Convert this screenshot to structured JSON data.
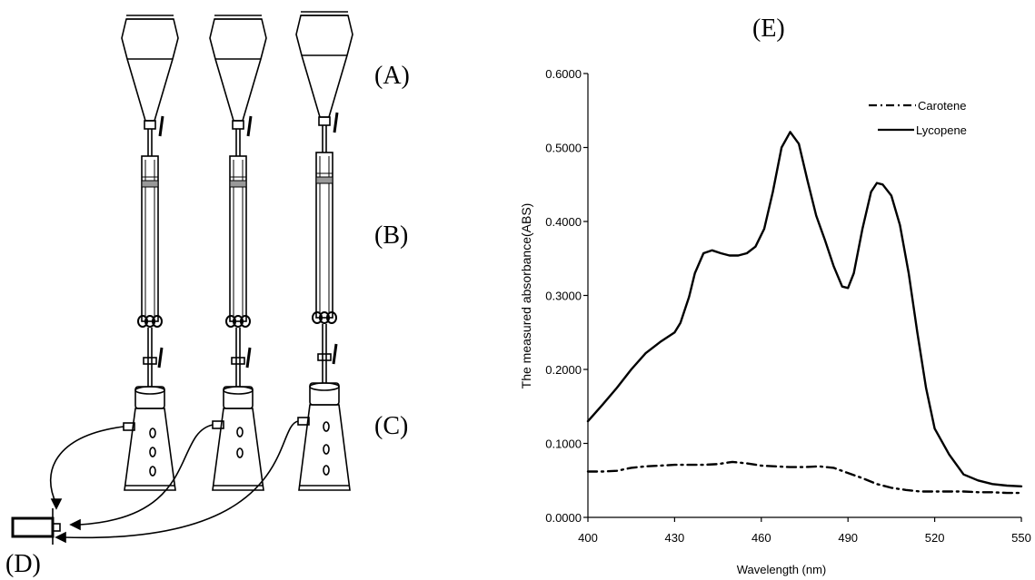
{
  "panel_labels": {
    "a": "(A)",
    "b": "(B)",
    "c": "(C)",
    "d": "(D)",
    "e": "(E)"
  },
  "chart_data": {
    "type": "line",
    "title": "",
    "xlabel": "Wavelength (nm)",
    "ylabel": "The measured absorbance(ABS)",
    "xlim": [
      400,
      550
    ],
    "ylim": [
      0,
      0.6
    ],
    "x_ticks": [
      "400",
      "430",
      "460",
      "490",
      "520",
      "550"
    ],
    "y_ticks": [
      "0.0000",
      "0.1000",
      "0.2000",
      "0.3000",
      "0.4000",
      "0.5000",
      "0.6000"
    ],
    "grid": false,
    "legend_position": "top-right",
    "series": [
      {
        "name": "Carotene",
        "style": "dash-dot",
        "color": "#000000",
        "x": [
          400,
          405,
          410,
          415,
          420,
          425,
          430,
          435,
          440,
          445,
          450,
          455,
          460,
          465,
          470,
          475,
          480,
          485,
          490,
          495,
          500,
          505,
          510,
          515,
          520,
          525,
          530,
          535,
          540,
          545,
          550
        ],
        "y": [
          0.062,
          0.062,
          0.063,
          0.067,
          0.069,
          0.07,
          0.071,
          0.071,
          0.071,
          0.072,
          0.075,
          0.073,
          0.07,
          0.069,
          0.068,
          0.068,
          0.069,
          0.067,
          0.06,
          0.053,
          0.045,
          0.04,
          0.037,
          0.035,
          0.035,
          0.035,
          0.035,
          0.034,
          0.034,
          0.033,
          0.033
        ]
      },
      {
        "name": "Lycopene",
        "style": "solid",
        "color": "#000000",
        "x": [
          400,
          405,
          410,
          415,
          420,
          425,
          430,
          432,
          435,
          437,
          440,
          443,
          446,
          449,
          452,
          455,
          458,
          461,
          464,
          467,
          470,
          473,
          476,
          479,
          482,
          485,
          488,
          490,
          492,
          495,
          498,
          500,
          502,
          505,
          508,
          511,
          514,
          517,
          520,
          525,
          530,
          535,
          540,
          545,
          550
        ],
        "y": [
          0.13,
          0.152,
          0.175,
          0.2,
          0.222,
          0.237,
          0.25,
          0.263,
          0.298,
          0.33,
          0.357,
          0.361,
          0.357,
          0.354,
          0.354,
          0.357,
          0.366,
          0.39,
          0.44,
          0.5,
          0.521,
          0.505,
          0.455,
          0.408,
          0.375,
          0.34,
          0.312,
          0.31,
          0.33,
          0.39,
          0.44,
          0.452,
          0.45,
          0.435,
          0.395,
          0.33,
          0.25,
          0.175,
          0.12,
          0.085,
          0.058,
          0.05,
          0.045,
          0.043,
          0.042
        ]
      }
    ]
  }
}
